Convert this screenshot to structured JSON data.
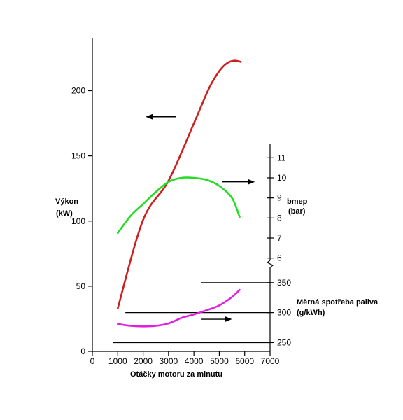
{
  "chart_data": {
    "type": "line",
    "xlabel": "Otáčky motoru za minutu",
    "xlim": [
      0,
      7000
    ],
    "x_ticks": [
      "0",
      "1000",
      "2000",
      "3000",
      "4000",
      "5000",
      "6000",
      "7000"
    ],
    "left_axis": {
      "label_line1": "Výkon",
      "label_line2": "(kW)",
      "ylim": [
        0,
        240
      ],
      "ticks": [
        "0",
        "50",
        "100",
        "150",
        "200"
      ]
    },
    "bmep_axis": {
      "label_line1": "bmep",
      "label_line2": "(bar)",
      "ylim": [
        5.5,
        11.5
      ],
      "ticks": [
        "6",
        "7",
        "8",
        "9",
        "10",
        "11"
      ]
    },
    "bsfc_axis": {
      "label_line1": "Měrná spotřeba paliva",
      "label_line2": "(g/kWh)",
      "ylim": [
        240,
        365
      ],
      "ticks": [
        "250",
        "300",
        "350"
      ]
    },
    "series": [
      {
        "axis": "left",
        "color": "#cc1f1f",
        "x": [
          1000,
          2000,
          3000,
          4000,
          4600,
          5000,
          5300,
          5600,
          5850
        ],
        "y": [
          33,
          101,
          131,
          175,
          202,
          215,
          221,
          223,
          222
        ]
      },
      {
        "axis": "bmep",
        "color": "#22dd22",
        "x": [
          1000,
          1500,
          2000,
          2500,
          3000,
          3500,
          4000,
          4500,
          5000,
          5500,
          5800
        ],
        "y": [
          7.25,
          8.1,
          8.7,
          9.3,
          9.8,
          10.0,
          10.0,
          9.9,
          9.6,
          9.0,
          8.05
        ]
      },
      {
        "axis": "bsfc",
        "color": "#e020e0",
        "x": [
          1000,
          1500,
          2000,
          2500,
          3000,
          3500,
          4000,
          4500,
          5000,
          5500,
          5800
        ],
        "y": [
          281,
          278,
          277,
          278,
          282,
          291,
          297,
          304,
          312,
          326,
          338
        ]
      }
    ],
    "arrows": [
      {
        "points_to": "left",
        "x": [
          3300,
          2100
        ],
        "axis": "left",
        "y": 180
      },
      {
        "points_to": "bmep",
        "x": [
          5100,
          6400
        ],
        "axis": "bmep",
        "y": 9.8
      },
      {
        "points_to": "bsfc",
        "x": [
          4300,
          5500
        ],
        "axis": "bsfc",
        "y": 289
      }
    ],
    "reference_lines": [
      {
        "axis": "bsfc",
        "y": 350,
        "x_from": 4300
      },
      {
        "axis": "bsfc",
        "y": 300,
        "x_from": 1300
      },
      {
        "axis": "bsfc",
        "y": 250,
        "x_from": 800
      }
    ]
  }
}
